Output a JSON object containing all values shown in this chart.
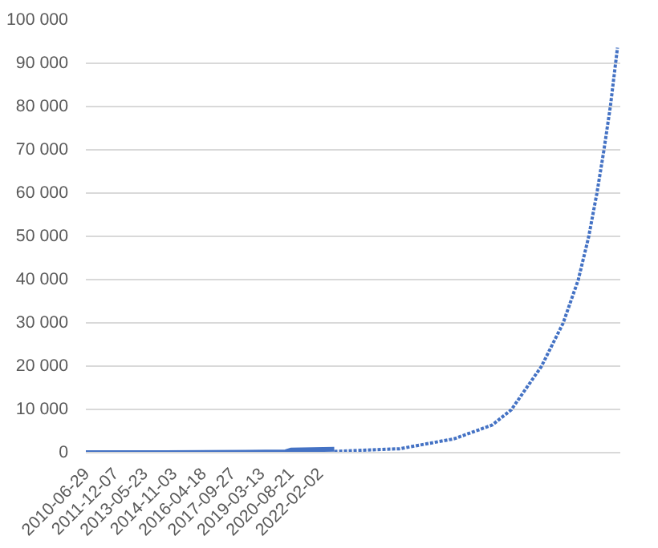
{
  "chart_data": {
    "type": "line",
    "xlim": [
      "2010-06-29",
      "2037-01-08"
    ],
    "xticks": [
      "2010-06-29",
      "2011-12-07",
      "2013-05-23",
      "2014-11-03",
      "2016-04-18",
      "2017-09-27",
      "2019-03-13",
      "2020-08-21",
      "2022-02-02"
    ],
    "ylim": [
      0,
      100000
    ],
    "yticks": [
      {
        "value": 0,
        "label": "0"
      },
      {
        "value": 10000,
        "label": "10 000"
      },
      {
        "value": 20000,
        "label": "20 000"
      },
      {
        "value": 30000,
        "label": "30 000"
      },
      {
        "value": 40000,
        "label": "40 000"
      },
      {
        "value": 50000,
        "label": "50 000"
      },
      {
        "value": 60000,
        "label": "60 000"
      },
      {
        "value": 70000,
        "label": "70 000"
      },
      {
        "value": 80000,
        "label": "80 000"
      },
      {
        "value": 90000,
        "label": "90 000"
      },
      {
        "value": 100000,
        "label": "100 000"
      }
    ],
    "grid": "y",
    "series": [
      {
        "color": "#4472c4",
        "line_style": "solid",
        "x": [
          "2010-06-29",
          "2014-06-01",
          "2018-06-01",
          "2020-06-01",
          "2020-09-01",
          "2022-10-28"
        ],
        "values": [
          0,
          0,
          100,
          200,
          600,
          800
        ]
      },
      {
        "color": "#4472c4",
        "line_style": "dotted",
        "x": [
          "2022-10-28",
          "2026-01-25",
          "2028-10-08",
          "2030-09-01",
          "2031-08-11",
          "2033-02-06",
          "2034-03-07",
          "2034-12-07",
          "2035-06-15",
          "2035-11-10",
          "2036-03-17",
          "2036-07-13",
          "2036-11-18"
        ],
        "values": [
          300,
          900,
          3200,
          6400,
          9900,
          19900,
          29900,
          39900,
          49900,
          59900,
          69900,
          80100,
          93600
        ]
      }
    ]
  }
}
